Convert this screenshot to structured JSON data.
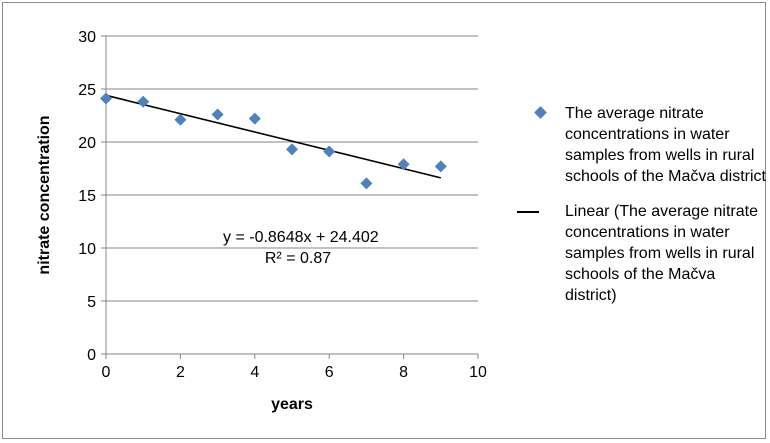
{
  "chart_data": {
    "type": "scatter",
    "xlabel": "years",
    "ylabel": "nitrate concentration",
    "xlim": [
      0,
      10
    ],
    "ylim": [
      0,
      30
    ],
    "x_ticks": [
      "0",
      "2",
      "4",
      "6",
      "8",
      "10"
    ],
    "y_ticks": [
      "0",
      "5",
      "10",
      "15",
      "20",
      "25",
      "30"
    ],
    "grid": "horizontal",
    "legend_position": "right",
    "series": [
      {
        "name": "The average nitrate concentrations in water samples from wells in rural schools of the Mačva district",
        "color": "#4f81bd",
        "marker": "diamond",
        "points": [
          {
            "x": 0,
            "y": 24.1
          },
          {
            "x": 1,
            "y": 23.8
          },
          {
            "x": 2,
            "y": 22.1
          },
          {
            "x": 3,
            "y": 22.6
          },
          {
            "x": 4,
            "y": 22.2
          },
          {
            "x": 5,
            "y": 19.3
          },
          {
            "x": 6,
            "y": 19.1
          },
          {
            "x": 7,
            "y": 16.1
          },
          {
            "x": 8,
            "y": 17.9
          },
          {
            "x": 9,
            "y": 17.7
          }
        ]
      }
    ],
    "trendline": {
      "name": "Linear (The average nitrate concentrations in water samples from wells in rural schools of the Mačva district)",
      "type": "linear",
      "slope": -0.8648,
      "intercept": 24.402,
      "x_range": [
        0,
        9
      ],
      "color": "#000000",
      "equation": "y = -0.8648x + 24.402",
      "r_squared": "R² = 0.87"
    }
  },
  "legend": {
    "items": [
      {
        "label": "The average nitrate concentrations in water samples from wells in rural schools of the Mačva district"
      },
      {
        "label": "Linear (The average nitrate concentrations in water samples from wells in rural schools of the Mačva district)"
      }
    ]
  }
}
